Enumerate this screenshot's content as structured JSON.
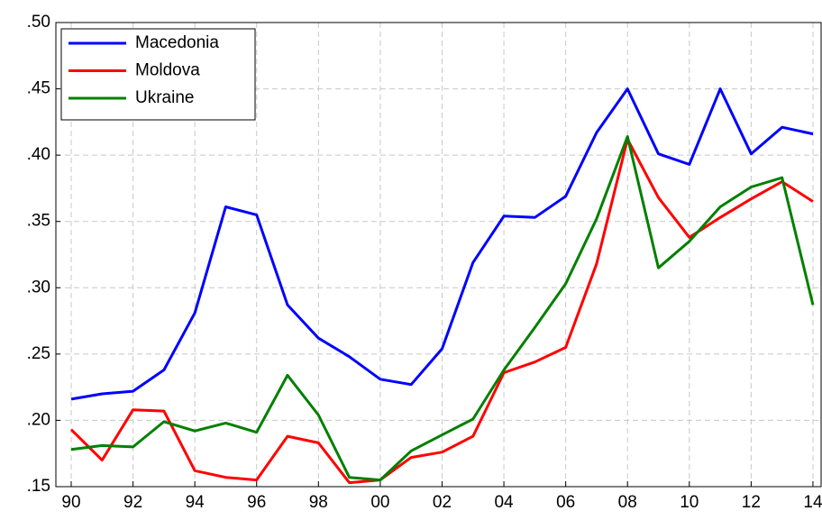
{
  "chart_data": {
    "type": "line",
    "categories": [
      "90",
      null,
      "92",
      null,
      "94",
      null,
      "96",
      null,
      "98",
      null,
      "00",
      null,
      "02",
      null,
      "04",
      null,
      "06",
      null,
      "08",
      null,
      "10",
      null,
      "12",
      null,
      "14"
    ],
    "series": [
      {
        "name": "Macedonia",
        "color": "#0000ff",
        "values": [
          0.216,
          0.22,
          0.222,
          0.238,
          0.281,
          0.361,
          0.355,
          0.287,
          0.262,
          0.248,
          0.231,
          0.227,
          0.254,
          0.319,
          0.354,
          0.353,
          0.369,
          0.417,
          0.45,
          0.401,
          0.393,
          0.45,
          0.401,
          0.421,
          0.416
        ]
      },
      {
        "name": "Moldova",
        "color": "#ff0000",
        "values": [
          0.193,
          0.17,
          0.208,
          0.207,
          0.162,
          0.157,
          0.155,
          0.188,
          0.183,
          0.153,
          0.155,
          0.172,
          0.176,
          0.188,
          0.236,
          0.244,
          0.255,
          0.318,
          0.412,
          0.368,
          0.338,
          0.353,
          0.367,
          0.38,
          0.365
        ]
      },
      {
        "name": "Ukraine",
        "color": "#008000",
        "values": [
          0.178,
          0.181,
          0.18,
          0.199,
          0.192,
          0.198,
          0.191,
          0.234,
          0.204,
          0.157,
          0.155,
          0.177,
          0.189,
          0.201,
          0.238,
          0.27,
          0.303,
          0.352,
          0.414,
          0.315,
          0.335,
          0.361,
          0.376,
          0.383,
          0.287
        ]
      }
    ],
    "ylim": [
      0.15,
      0.5
    ],
    "yticks": [
      {
        "value": 0.15,
        "label": ".15"
      },
      {
        "value": 0.2,
        "label": ".20"
      },
      {
        "value": 0.25,
        "label": ".25"
      },
      {
        "value": 0.3,
        "label": ".30"
      },
      {
        "value": 0.35,
        "label": ".35"
      },
      {
        "value": 0.4,
        "label": ".40"
      },
      {
        "value": 0.45,
        "label": ".45"
      },
      {
        "value": 0.5,
        "label": ".50"
      }
    ],
    "grid": true,
    "legend": "upper-left"
  }
}
